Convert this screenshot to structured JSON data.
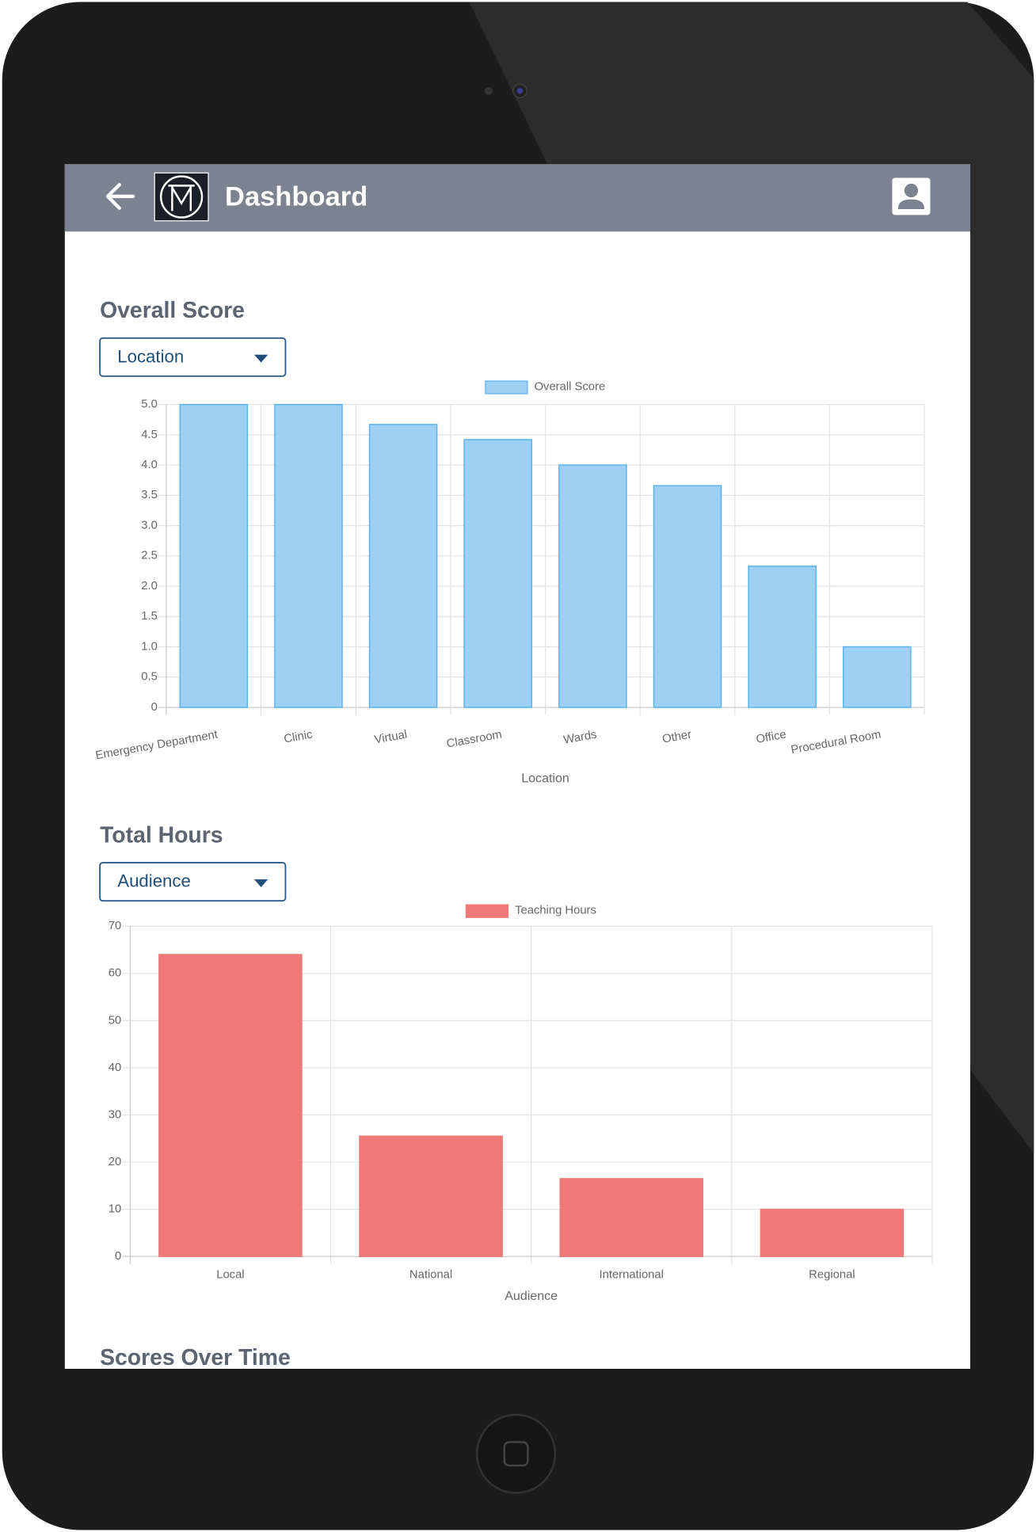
{
  "header": {
    "title": "Dashboard"
  },
  "chart_data": [
    {
      "type": "bar",
      "title": "Overall Score",
      "filter": "Location",
      "categories": [
        "Emergency Department",
        "Clinic",
        "Virtual",
        "Classroom",
        "Wards",
        "Other",
        "Office",
        "Procedural Room"
      ],
      "series": [
        {
          "name": "Overall Score",
          "color": "#9dd0f4",
          "border_color": "#5cb3ea",
          "values": [
            5.0,
            5.0,
            4.67,
            4.42,
            4.0,
            3.66,
            2.33,
            1.0
          ]
        }
      ],
      "xlabel": "Location",
      "ylim": [
        0,
        5
      ],
      "yticks": [
        0,
        0.5,
        {
          "value": 1,
          "label": "1.0"
        },
        1.5,
        {
          "value": 2,
          "label": "2.0"
        },
        2.5,
        {
          "value": 3,
          "label": "3.0"
        },
        3.5,
        {
          "value": 4,
          "label": "4.0"
        },
        4.5,
        {
          "value": 5,
          "label": "5.0"
        }
      ],
      "grid": true
    },
    {
      "type": "bar",
      "title": "Total Hours",
      "filter": "Audience",
      "categories": [
        "Local",
        "National",
        "International",
        "Regional"
      ],
      "series": [
        {
          "name": "Teaching Hours",
          "color": "#ef7878",
          "border_color": "#ef7878",
          "values": [
            64,
            25.5,
            16.5,
            10
          ]
        }
      ],
      "xlabel": "Audience",
      "ylim": [
        0,
        70
      ],
      "yticks": [
        0,
        10,
        20,
        30,
        40,
        50,
        60,
        70
      ],
      "grid": true
    }
  ],
  "sections": [
    {
      "title": "Scores Over Time"
    }
  ]
}
